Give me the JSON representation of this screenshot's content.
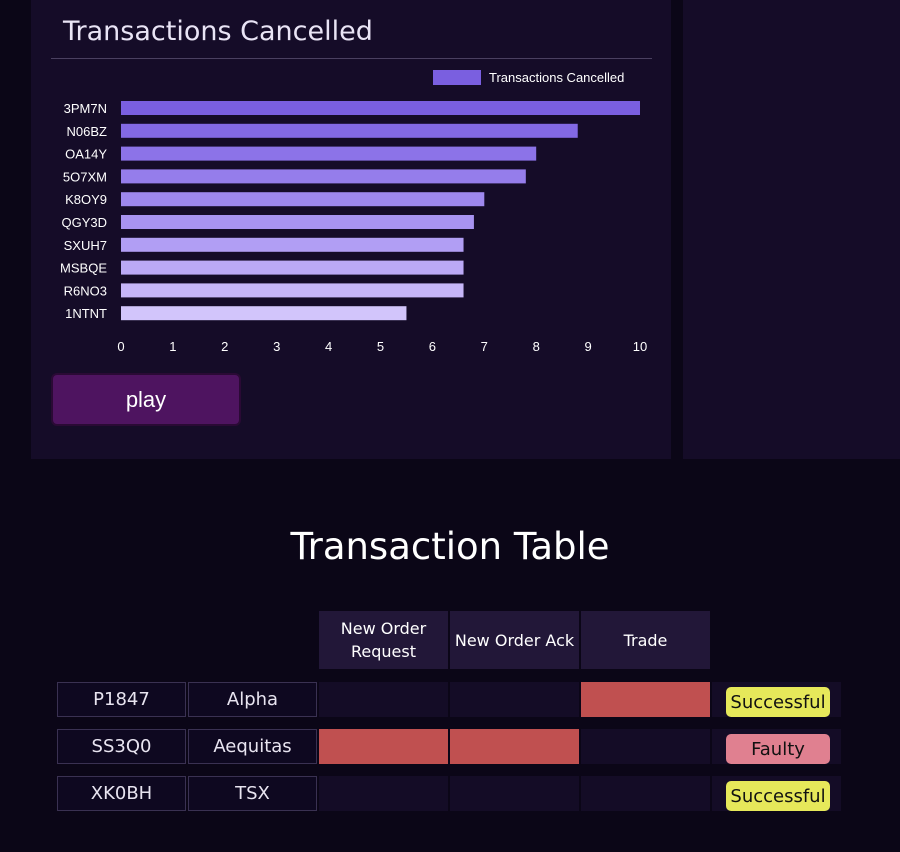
{
  "chart_data": {
    "type": "bar",
    "orientation": "horizontal",
    "title": "Transactions Cancelled",
    "legend": {
      "label": "Transactions Cancelled",
      "position": "top-right"
    },
    "categories": [
      "3PM7N",
      "N06BZ",
      "OA14Y",
      "5O7XM",
      "K8OY9",
      "QGY3D",
      "SXUH7",
      "MSBQE",
      "R6NO3",
      "1NTNT"
    ],
    "values": [
      10,
      8.8,
      8,
      7.8,
      7,
      6.8,
      6.6,
      6.6,
      6.6,
      5.5
    ],
    "colors": [
      "#7a5fe0",
      "#8369e4",
      "#8c73e8",
      "#957deb",
      "#9e88ee",
      "#a893f1",
      "#b19ef4",
      "#bba9f6",
      "#c6b6f8",
      "#d2c5fb"
    ],
    "x_ticks": [
      "0",
      "1",
      "2",
      "3",
      "4",
      "5",
      "6",
      "7",
      "8",
      "9",
      "10"
    ],
    "xlim": [
      0,
      10
    ],
    "grid": false
  },
  "controls": {
    "play_label": "play"
  },
  "table": {
    "title": "Transaction Table",
    "headers": [
      "New Order Request",
      "New Order Ack",
      "Trade"
    ],
    "rows": [
      {
        "id": "P1847",
        "exchange": "Alpha",
        "stages": [
          false,
          false,
          true
        ],
        "status": "Successful",
        "status_type": "ok"
      },
      {
        "id": "SS3Q0",
        "exchange": "Aequitas",
        "stages": [
          true,
          true,
          false
        ],
        "status": "Faulty",
        "status_type": "bad"
      },
      {
        "id": "XK0BH",
        "exchange": "TSX",
        "stages": [
          false,
          false,
          false
        ],
        "status": "Successful",
        "status_type": "ok"
      }
    ]
  }
}
